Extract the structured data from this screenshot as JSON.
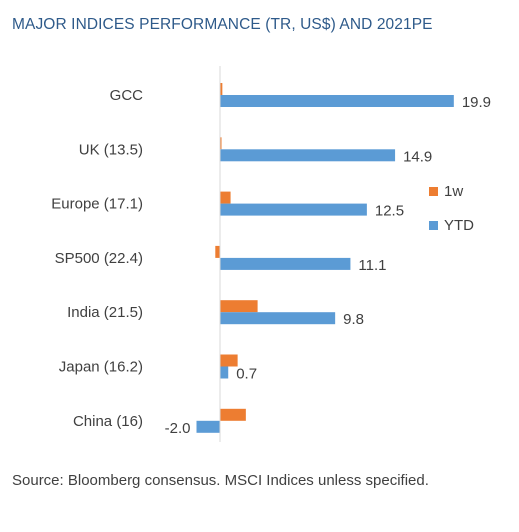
{
  "title": "MAJOR INDICES PERFORMANCE (TR, US$) AND 2021PE",
  "source_note": "Source: Bloomberg consensus. MSCI Indices unless specified.",
  "colors": {
    "oneweek": "#ed7d31",
    "ytd": "#5b9bd5",
    "axis": "#d9d9d9",
    "text": "#404040",
    "title": "#2e5a8a"
  },
  "chart_data": {
    "type": "bar",
    "orientation": "horizontal",
    "categories": [
      "GCC",
      "UK (13.5)",
      "Europe (17.1)",
      "SP500 (22.4)",
      "India (21.5)",
      "Japan (16.2)",
      "China (16)"
    ],
    "series": [
      {
        "name": "1w",
        "values": [
          0.2,
          0.1,
          0.9,
          -0.4,
          3.2,
          1.5,
          2.2
        ]
      },
      {
        "name": "YTD",
        "values": [
          19.9,
          14.9,
          12.5,
          11.1,
          9.8,
          0.7,
          -2.0
        ],
        "labels": [
          "19.9",
          "14.9",
          "12.5",
          "11.1",
          "9.8",
          "0.7",
          "-2.0"
        ]
      }
    ],
    "legend": {
      "position": "right",
      "entries": [
        "1w",
        "YTD"
      ]
    },
    "xlim": [
      -2.5,
      20
    ],
    "grid": false
  }
}
